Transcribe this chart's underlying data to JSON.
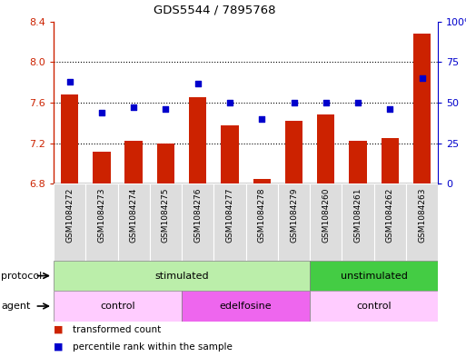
{
  "title": "GDS5544 / 7895768",
  "samples": [
    "GSM1084272",
    "GSM1084273",
    "GSM1084274",
    "GSM1084275",
    "GSM1084276",
    "GSM1084277",
    "GSM1084278",
    "GSM1084279",
    "GSM1084260",
    "GSM1084261",
    "GSM1084262",
    "GSM1084263"
  ],
  "bar_values": [
    7.68,
    7.12,
    7.22,
    7.2,
    7.65,
    7.38,
    6.85,
    7.42,
    7.48,
    7.22,
    7.25,
    8.28
  ],
  "percentile_values": [
    63,
    44,
    47,
    46,
    62,
    50,
    40,
    50,
    50,
    50,
    46,
    65
  ],
  "ylim_left": [
    6.8,
    8.4
  ],
  "ylim_right": [
    0,
    100
  ],
  "yticks_left": [
    6.8,
    7.2,
    7.6,
    8.0,
    8.4
  ],
  "yticks_right": [
    0,
    25,
    50,
    75,
    100
  ],
  "bar_color": "#cc2200",
  "scatter_color": "#0000cc",
  "protocol_groups": [
    {
      "label": "stimulated",
      "start": 0,
      "end": 8,
      "color": "#bbeeaa"
    },
    {
      "label": "unstimulated",
      "start": 8,
      "end": 12,
      "color": "#44cc44"
    }
  ],
  "agent_groups": [
    {
      "label": "control",
      "start": 0,
      "end": 4,
      "color": "#ffccff"
    },
    {
      "label": "edelfosine",
      "start": 4,
      "end": 8,
      "color": "#ee66ee"
    },
    {
      "label": "control",
      "start": 8,
      "end": 12,
      "color": "#ffccff"
    }
  ],
  "legend_bar_label": "transformed count",
  "legend_scatter_label": "percentile rank within the sample",
  "tick_label_bg": "#dddddd",
  "bg_color": "#ffffff"
}
